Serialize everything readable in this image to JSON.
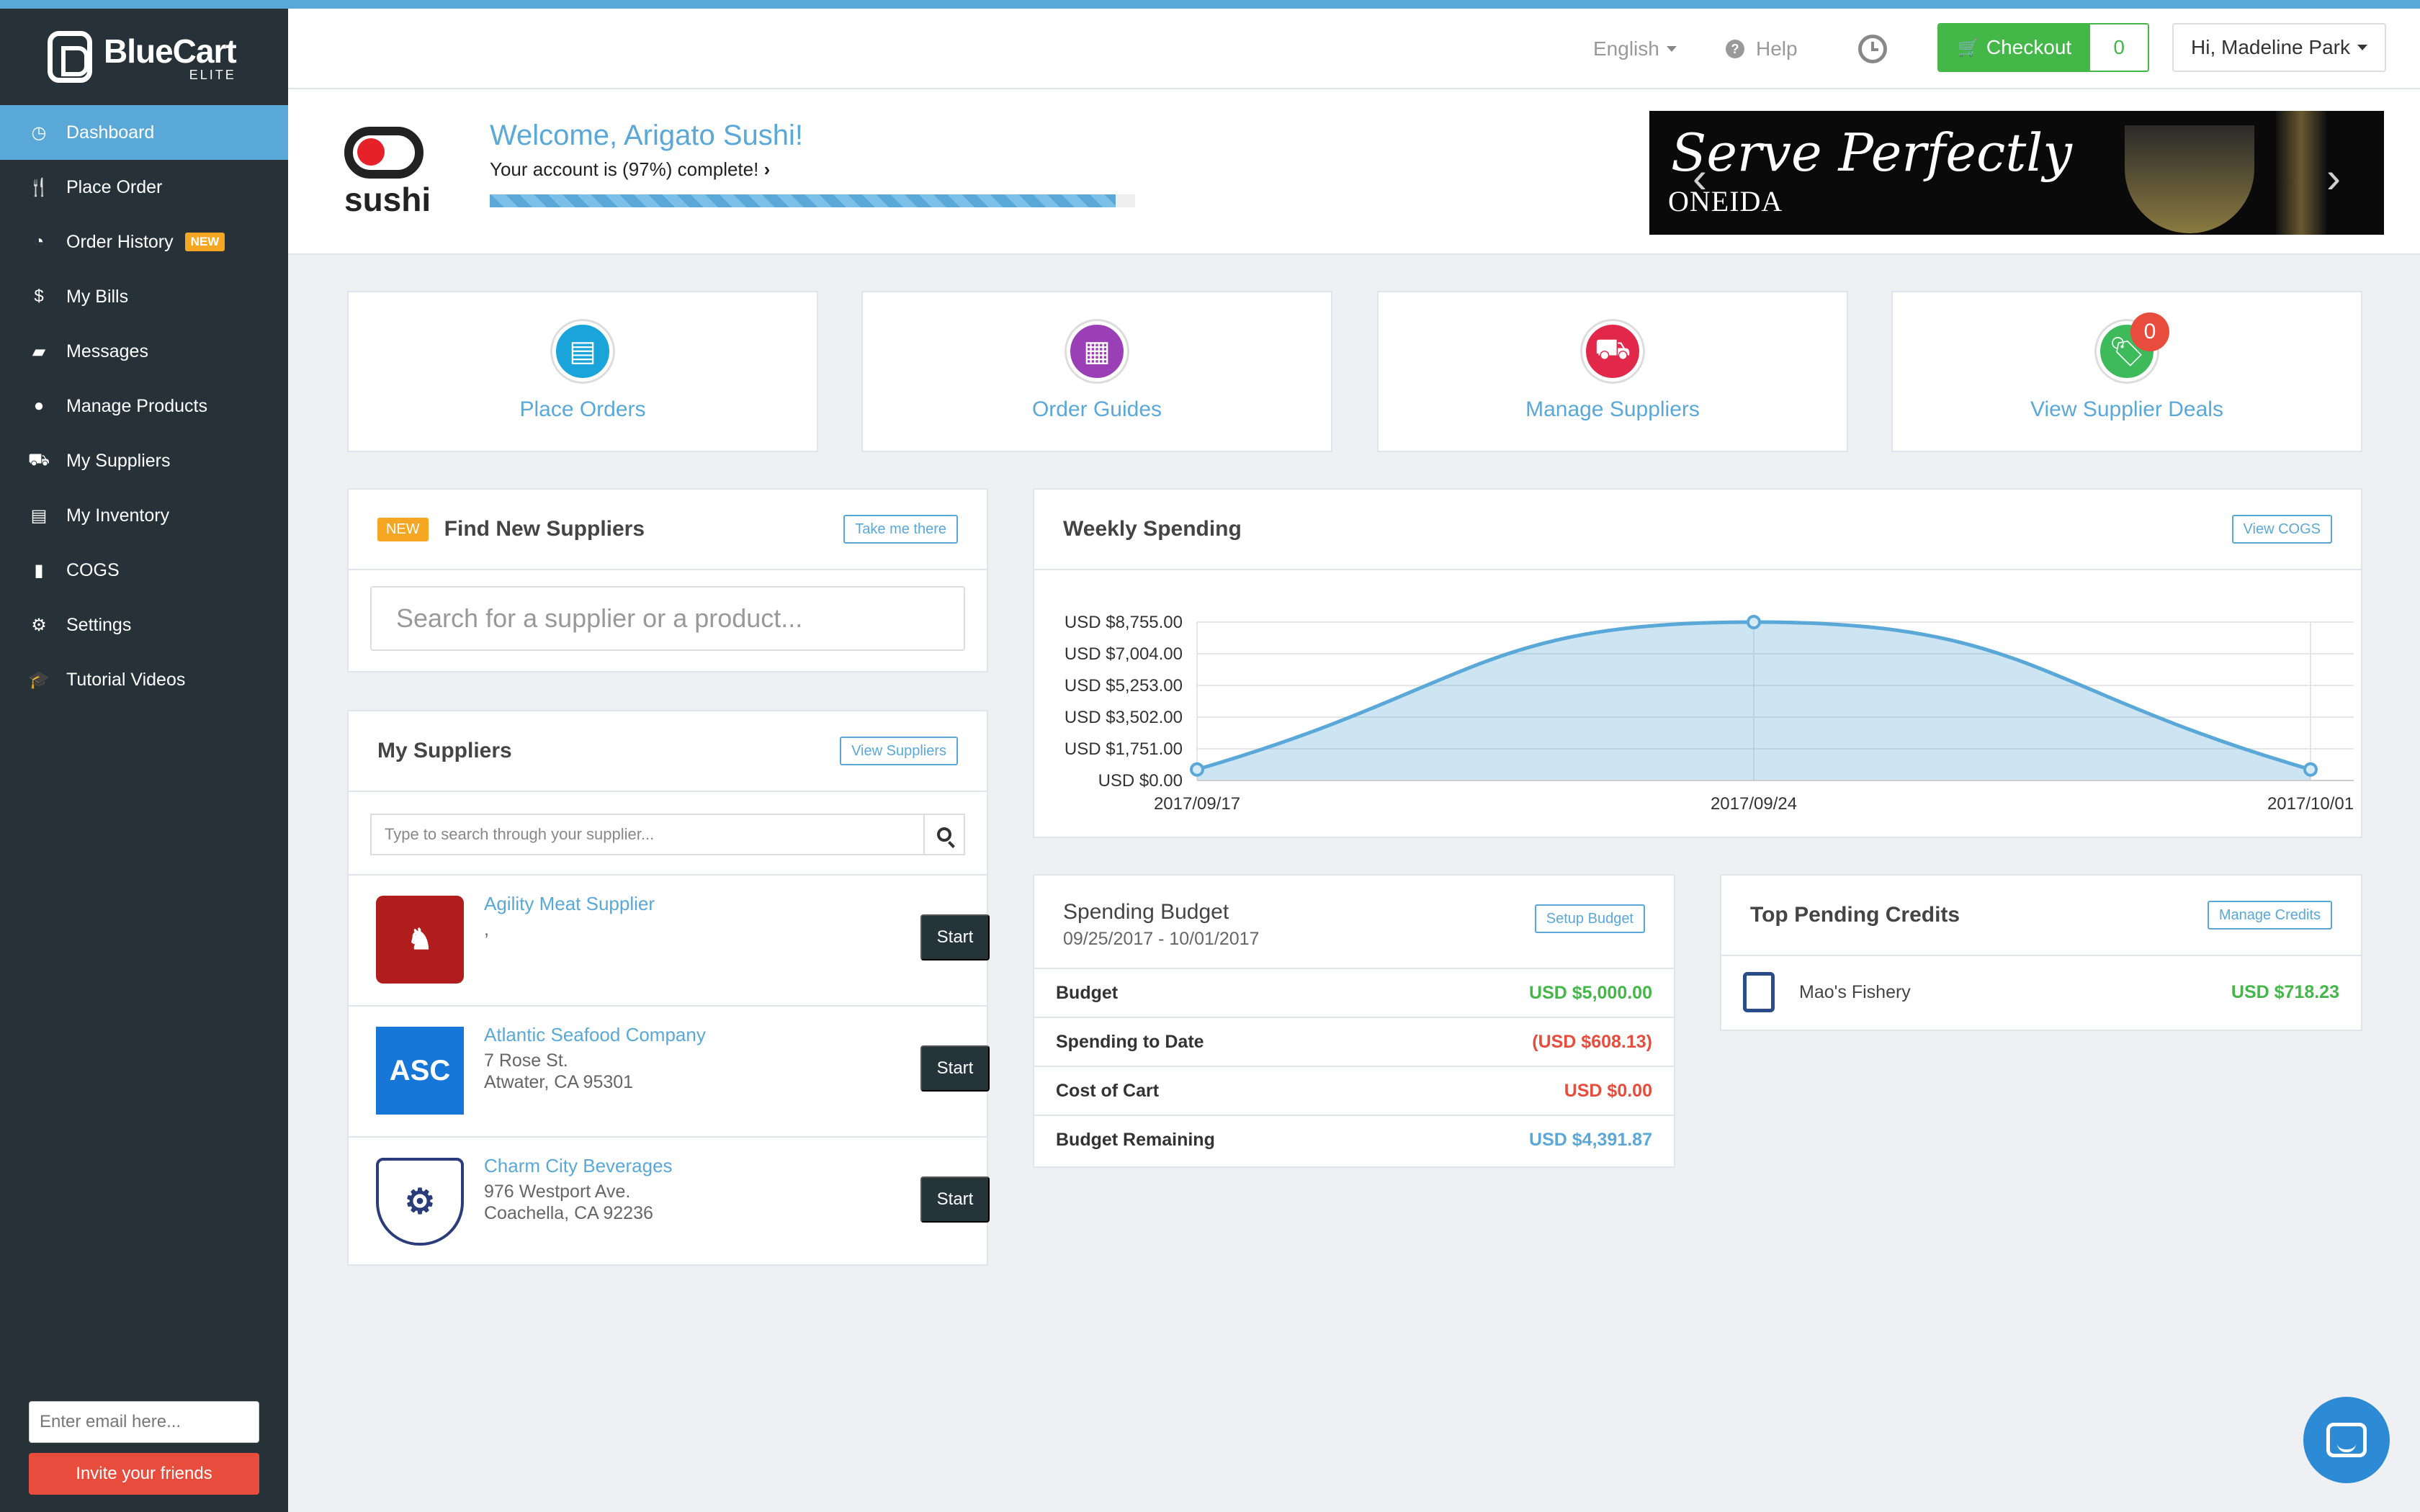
{
  "app": {
    "name": "BlueCart",
    "tier": "ELITE"
  },
  "colors": {
    "accent": "#5aa8d8",
    "sidebar": "#263238",
    "checkout": "#44b749",
    "danger": "#e74c3c",
    "badge": "#f5a623"
  },
  "sidebar": {
    "items": [
      {
        "label": "Dashboard",
        "icon": "dashboard-icon",
        "active": true
      },
      {
        "label": "Place Order",
        "icon": "utensils-icon"
      },
      {
        "label": "Order History",
        "icon": "clock-icon",
        "badge": "NEW"
      },
      {
        "label": "My Bills",
        "icon": "dollar-icon"
      },
      {
        "label": "Messages",
        "icon": "chat-icon"
      },
      {
        "label": "Manage Products",
        "icon": "apple-icon"
      },
      {
        "label": "My Suppliers",
        "icon": "truck-icon"
      },
      {
        "label": "My Inventory",
        "icon": "inventory-icon"
      },
      {
        "label": "COGS",
        "icon": "bar-chart-icon"
      },
      {
        "label": "Settings",
        "icon": "gear-icon"
      },
      {
        "label": "Tutorial Videos",
        "icon": "graduation-cap-icon"
      }
    ],
    "invite": {
      "placeholder": "Enter email here...",
      "button": "Invite your friends"
    }
  },
  "topbar": {
    "language": "English",
    "help": "Help",
    "checkout_label": "Checkout",
    "cart_count": "0",
    "user_greeting": "Hi, Madeline Park"
  },
  "welcome": {
    "logo_text": "sushi",
    "title": "Welcome, Arigato Sushi!",
    "subtitle": "Your account is (97%) complete!",
    "progress_percent": 97,
    "banner_text": "Serve Perfectly",
    "banner_brand": "ONEIDA"
  },
  "tiles": [
    {
      "label": "Place Orders",
      "icon": "clipboard-icon",
      "color": "#1ba4d9"
    },
    {
      "label": "Order Guides",
      "icon": "table-icon",
      "color": "#9b3fb6"
    },
    {
      "label": "Manage Suppliers",
      "icon": "truck-icon",
      "color": "#e2284a"
    },
    {
      "label": "View Supplier Deals",
      "icon": "tag-icon",
      "color": "#3dbb5a",
      "badge": "0"
    }
  ],
  "find_suppliers": {
    "badge": "NEW",
    "title": "Find New Suppliers",
    "button": "Take me there",
    "placeholder": "Search for a supplier or a product..."
  },
  "my_suppliers": {
    "title": "My Suppliers",
    "button": "View Suppliers",
    "search_placeholder": "Type to search through your supplier...",
    "start_label": "Start",
    "items": [
      {
        "name": "Agility Meat Supplier",
        "line1": ",",
        "line2": "",
        "logo": "dragon-shield-logo",
        "color": "#b11d1d"
      },
      {
        "name": "Atlantic Seafood Company",
        "line1": "7 Rose St.",
        "line2": "Atwater, CA 95301",
        "logo": "ASC",
        "color": "#1677d9"
      },
      {
        "name": "Charm City Beverages",
        "line1": "976 Westport Ave.",
        "line2": "Coachella, CA 92236",
        "logo": "charm-city-badge-logo",
        "color": "#2a3d7a"
      }
    ]
  },
  "weekly_spending": {
    "title": "Weekly Spending",
    "button": "View COGS"
  },
  "chart_data": {
    "type": "area",
    "title": "Weekly Spending",
    "x": [
      "2017/09/17",
      "2017/09/24",
      "2017/10/01"
    ],
    "values": [
      608.13,
      8755.0,
      608.13
    ],
    "y_ticks": [
      "USD $0.00",
      "USD $1,751.00",
      "USD $3,502.00",
      "USD $5,253.00",
      "USD $7,004.00",
      "USD $8,755.00"
    ],
    "ylim": [
      0,
      8755
    ],
    "grid": true,
    "color": "#5aa8d8"
  },
  "budget": {
    "title": "Spending Budget",
    "range": "09/25/2017 - 10/01/2017",
    "button": "Setup Budget",
    "rows": [
      {
        "label": "Budget",
        "value": "USD $5,000.00",
        "tone": "green"
      },
      {
        "label": "Spending to Date",
        "value": "(USD $608.13)",
        "tone": "red"
      },
      {
        "label": "Cost of Cart",
        "value": "USD $0.00",
        "tone": "red"
      },
      {
        "label": "Budget Remaining",
        "value": "USD $4,391.87",
        "tone": "blue"
      }
    ]
  },
  "credits": {
    "title": "Top Pending Credits",
    "button": "Manage Credits",
    "items": [
      {
        "name": "Mao's Fishery",
        "amount": "USD $718.23"
      }
    ]
  }
}
